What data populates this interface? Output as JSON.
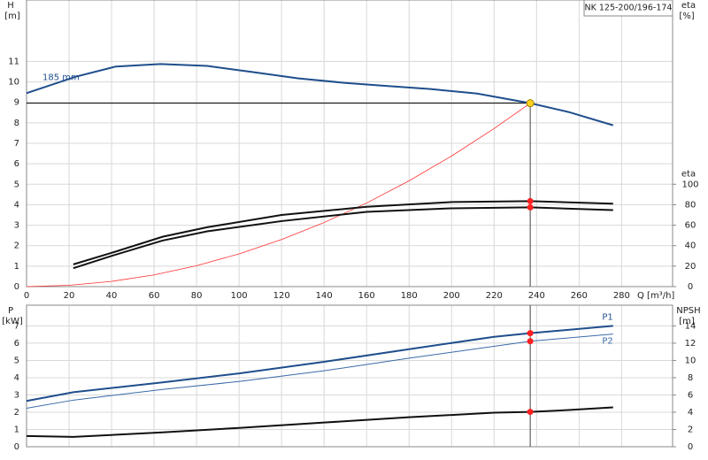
{
  "chart_data": [
    {
      "type": "line",
      "title": "NK 125-200/196-174",
      "ylabel": "H",
      "yunit": "[m]",
      "y2label": "eta",
      "y2unit": "[%]",
      "xlabel": "Q [m³/h]",
      "xlim": [
        0,
        304
      ],
      "xticks": [
        0,
        20,
        40,
        60,
        80,
        100,
        120,
        140,
        160,
        180,
        200,
        220,
        240,
        260,
        280
      ],
      "ylim": [
        0,
        14
      ],
      "yticks": [
        0,
        1,
        2,
        3,
        4,
        5,
        6,
        7,
        8,
        9,
        10,
        11
      ],
      "y2lim": [
        0,
        280
      ],
      "y2ticks": [
        0,
        20,
        40,
        60,
        80,
        100
      ],
      "grid": true,
      "duty_point": {
        "x": 237,
        "y": 8.96,
        "color": "#ffd21f"
      },
      "series": [
        {
          "name": "185 mm",
          "color": "#1f4e8c",
          "x": [
            0,
            23,
            42,
            63,
            85,
            105,
            128,
            150,
            170,
            190,
            212,
            237,
            255,
            276
          ],
          "values": [
            9.45,
            10.25,
            10.75,
            10.87,
            10.78,
            10.5,
            10.17,
            9.95,
            9.8,
            9.65,
            9.43,
            8.96,
            8.53,
            7.88
          ]
        },
        {
          "color": "#ff3030",
          "x": [
            0,
            20,
            40,
            60,
            80,
            100,
            120,
            140,
            160,
            180,
            200,
            220,
            237
          ],
          "values": [
            0,
            0.064,
            0.255,
            0.574,
            1.02,
            1.6,
            2.3,
            3.13,
            4.08,
            5.17,
            6.38,
            7.72,
            8.96
          ]
        },
        {
          "color": "#111111",
          "axis": "y2",
          "x": [
            22,
            40,
            64,
            85,
            120,
            160,
            200,
            237,
            276
          ],
          "values": [
            21.7,
            33,
            48.7,
            58,
            70,
            78,
            82.6,
            83.5,
            81
          ],
          "duty_value": 83.5
        },
        {
          "color": "#111111",
          "axis": "y2",
          "x": [
            22,
            40,
            64,
            85,
            120,
            160,
            200,
            237,
            276
          ],
          "values": [
            18,
            30,
            45,
            54,
            64,
            73,
            76.5,
            77.4,
            74.8
          ],
          "duty_value": 77.4
        }
      ]
    },
    {
      "type": "line",
      "ylabel": "P",
      "yunit": "[kW]",
      "y2label": "NPSH",
      "y2unit": "[m]",
      "xlim": [
        0,
        304
      ],
      "xticks": [
        0,
        20,
        40,
        60,
        80,
        100,
        120,
        140,
        160,
        180,
        200,
        220,
        240,
        260,
        280
      ],
      "ylim": [
        0,
        8.2
      ],
      "yticks": [
        0,
        1,
        2,
        3,
        4,
        5,
        6,
        7
      ],
      "y2lim": [
        0,
        16.4
      ],
      "y2ticks": [
        0,
        2,
        4,
        6,
        8,
        10,
        12,
        14
      ],
      "grid": true,
      "duty_x": 237,
      "series": [
        {
          "name": "P1",
          "color": "#1f4e8c",
          "x": [
            0,
            22,
            64,
            100,
            140,
            180,
            220,
            237,
            276
          ],
          "values": [
            2.65,
            3.16,
            3.73,
            4.25,
            4.92,
            5.65,
            6.37,
            6.58,
            7.0
          ],
          "duty_value": 6.58
        },
        {
          "name": "P2",
          "color": "#3a6aa8",
          "x": [
            0,
            22,
            64,
            100,
            140,
            180,
            237,
            276
          ],
          "values": [
            2.23,
            2.7,
            3.32,
            3.78,
            4.4,
            5.13,
            6.11,
            6.53
          ],
          "duty_value": 6.11
        },
        {
          "color": "#111111",
          "axis": "y2",
          "x": [
            0,
            22,
            64,
            100,
            140,
            180,
            220,
            237,
            255,
            276
          ],
          "values": [
            1.24,
            1.14,
            1.66,
            2.18,
            2.8,
            3.42,
            3.94,
            4.04,
            4.25,
            4.56
          ],
          "duty_value": 4.04
        }
      ]
    }
  ]
}
